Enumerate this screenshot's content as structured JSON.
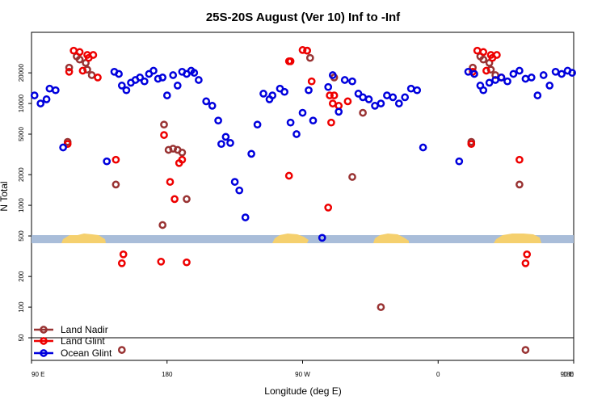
{
  "chart_data": {
    "type": "scatter",
    "title": "25S-20S August (Ver 10)   Inf to -Inf",
    "xlabel": "Longitude (deg E)",
    "ylabel": "N Total",
    "y_scale": "log",
    "xlim": [
      90,
      450
    ],
    "ylim": [
      30,
      50000
    ],
    "x_ticks": [
      {
        "value": 90,
        "label": "90 E"
      },
      {
        "value": 180,
        "label": "180"
      },
      {
        "value": 270,
        "label": "90 W"
      },
      {
        "value": 360,
        "label": "0"
      },
      {
        "value": 450,
        "label": "90 E"
      },
      {
        "value": 540,
        "label": "180"
      }
    ],
    "y_ticks": [
      {
        "value": 50,
        "label": "50"
      },
      {
        "value": 100,
        "label": "100"
      },
      {
        "value": 200,
        "label": "200"
      },
      {
        "value": 500,
        "label": "500"
      },
      {
        "value": 1000,
        "label": "1000"
      },
      {
        "value": 2000,
        "label": "2000"
      },
      {
        "value": 5000,
        "label": "5000"
      },
      {
        "value": 10000,
        "label": "10000"
      },
      {
        "value": 20000,
        "label": "20000"
      }
    ],
    "reference_line_y": 50,
    "series": [
      {
        "name": "Land Nadir",
        "color": "#993333",
        "points": [
          [
            115,
            22500
          ],
          [
            120,
            29000
          ],
          [
            122,
            27000
          ],
          [
            126,
            25000
          ],
          [
            127,
            21500
          ],
          [
            130,
            19000
          ],
          [
            114,
            4200
          ],
          [
            146,
            1600
          ],
          [
            150,
            38
          ],
          [
            177,
            640
          ],
          [
            178,
            6200
          ],
          [
            181,
            3500
          ],
          [
            184,
            3600
          ],
          [
            187,
            3500
          ],
          [
            190,
            3300
          ],
          [
            193,
            1150
          ],
          [
            273,
            33000
          ],
          [
            275,
            28000
          ],
          [
            291,
            18000
          ],
          [
            303,
            1900
          ],
          [
            310,
            8100
          ],
          [
            322,
            100
          ],
          [
            383,
            22500
          ],
          [
            388,
            29000
          ],
          [
            390,
            27000
          ],
          [
            394,
            25000
          ],
          [
            395,
            21500
          ],
          [
            398,
            19000
          ],
          [
            382,
            4200
          ],
          [
            414,
            1600
          ],
          [
            418,
            38
          ]
        ]
      },
      {
        "name": "Land Glint",
        "color": "#ee0000",
        "points": [
          [
            115,
            20500
          ],
          [
            118,
            33000
          ],
          [
            122,
            32000
          ],
          [
            127,
            30000
          ],
          [
            124,
            21000
          ],
          [
            128,
            28000
          ],
          [
            131,
            30000
          ],
          [
            134,
            18000
          ],
          [
            114,
            4000
          ],
          [
            146,
            2800
          ],
          [
            151,
            330
          ],
          [
            150,
            270
          ],
          [
            176,
            280
          ],
          [
            178,
            4900
          ],
          [
            182,
            1700
          ],
          [
            185,
            1150
          ],
          [
            188,
            2600
          ],
          [
            190,
            2800
          ],
          [
            193,
            275
          ],
          [
            261,
            26000
          ],
          [
            262,
            26000
          ],
          [
            270,
            33500
          ],
          [
            273,
            33000
          ],
          [
            276,
            16500
          ],
          [
            288,
            12000
          ],
          [
            291,
            12000
          ],
          [
            261,
            1950
          ],
          [
            287,
            950
          ],
          [
            289,
            6500
          ],
          [
            290,
            10000
          ],
          [
            294,
            9500
          ],
          [
            300,
            10500
          ],
          [
            383,
            20500
          ],
          [
            386,
            33000
          ],
          [
            390,
            32000
          ],
          [
            395,
            30000
          ],
          [
            392,
            21000
          ],
          [
            396,
            28000
          ],
          [
            399,
            30000
          ],
          [
            402,
            18000
          ],
          [
            382,
            4000
          ],
          [
            414,
            2800
          ],
          [
            419,
            330
          ],
          [
            418,
            270
          ]
        ]
      },
      {
        "name": "Ocean Glint",
        "color": "#0000dd",
        "points": [
          [
            92,
            12000
          ],
          [
            96,
            10000
          ],
          [
            100,
            11000
          ],
          [
            102,
            14000
          ],
          [
            106,
            13500
          ],
          [
            111,
            3700
          ],
          [
            140,
            2700
          ],
          [
            145,
            20500
          ],
          [
            148,
            19500
          ],
          [
            150,
            15000
          ],
          [
            153,
            13500
          ],
          [
            156,
            16000
          ],
          [
            159,
            17000
          ],
          [
            162,
            18000
          ],
          [
            165,
            16500
          ],
          [
            168,
            19500
          ],
          [
            171,
            21000
          ],
          [
            174,
            17500
          ],
          [
            177,
            18000
          ],
          [
            180,
            12000
          ],
          [
            184,
            19000
          ],
          [
            187,
            15000
          ],
          [
            190,
            20500
          ],
          [
            193,
            19500
          ],
          [
            196,
            21000
          ],
          [
            198,
            20000
          ],
          [
            201,
            17000
          ],
          [
            206,
            10500
          ],
          [
            210,
            9500
          ],
          [
            214,
            6800
          ],
          [
            216,
            4000
          ],
          [
            219,
            4700
          ],
          [
            222,
            4100
          ],
          [
            225,
            1700
          ],
          [
            228,
            1400
          ],
          [
            232,
            760
          ],
          [
            236,
            3200
          ],
          [
            240,
            6200
          ],
          [
            244,
            12500
          ],
          [
            248,
            11000
          ],
          [
            250,
            12000
          ],
          [
            255,
            14000
          ],
          [
            258,
            13000
          ],
          [
            262,
            6500
          ],
          [
            266,
            5000
          ],
          [
            270,
            8100
          ],
          [
            274,
            13500
          ],
          [
            277,
            6800
          ],
          [
            283,
            480
          ],
          [
            287,
            14500
          ],
          [
            290,
            19000
          ],
          [
            294,
            8300
          ],
          [
            298,
            17000
          ],
          [
            303,
            16500
          ],
          [
            307,
            12500
          ],
          [
            310,
            11500
          ],
          [
            314,
            11000
          ],
          [
            318,
            9500
          ],
          [
            322,
            10000
          ],
          [
            326,
            12000
          ],
          [
            330,
            11500
          ],
          [
            334,
            10000
          ],
          [
            338,
            11500
          ],
          [
            342,
            14000
          ],
          [
            346,
            13500
          ],
          [
            350,
            3700
          ],
          [
            374,
            2700
          ],
          [
            380,
            20500
          ],
          [
            384,
            19500
          ],
          [
            388,
            15000
          ],
          [
            390,
            13500
          ],
          [
            394,
            16000
          ],
          [
            398,
            17000
          ],
          [
            402,
            18000
          ],
          [
            406,
            16500
          ],
          [
            410,
            19500
          ],
          [
            414,
            21000
          ],
          [
            418,
            17500
          ],
          [
            422,
            18000
          ],
          [
            426,
            12000
          ],
          [
            430,
            19000
          ],
          [
            434,
            15000
          ],
          [
            438,
            20500
          ],
          [
            442,
            19500
          ],
          [
            446,
            21000
          ],
          [
            449,
            20000
          ]
        ]
      }
    ]
  },
  "map_color_ocean": "#a9bdd9",
  "map_color_land": "#f5d06e"
}
